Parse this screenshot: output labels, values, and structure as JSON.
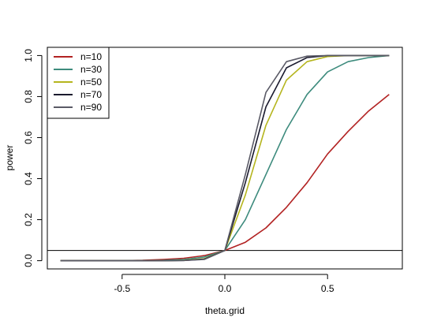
{
  "chart_data": {
    "type": "line",
    "xlabel": "theta.grid",
    "ylabel": "power",
    "xlim": [
      -0.8,
      0.8
    ],
    "ylim": [
      0,
      1
    ],
    "x_ticks": [
      -0.5,
      0.0,
      0.5
    ],
    "x_tick_labels": [
      "-0.5",
      "0.0",
      "0.5"
    ],
    "y_ticks": [
      0.0,
      0.2,
      0.4,
      0.6,
      0.8,
      1.0
    ],
    "y_tick_labels": [
      "0.0",
      "0.2",
      "0.4",
      "0.6",
      "0.8",
      "1.0"
    ],
    "legend_position": "top-left",
    "reference_line": {
      "y": 0.05,
      "color": "#000000"
    },
    "series": [
      {
        "name": "n=10",
        "color": "#b22222",
        "x": [
          -0.8,
          -0.7,
          -0.6,
          -0.5,
          -0.4,
          -0.3,
          -0.2,
          -0.1,
          0.0,
          0.1,
          0.2,
          0.3,
          0.4,
          0.5,
          0.6,
          0.7,
          0.8
        ],
        "y": [
          0.0,
          0.0,
          0.0,
          0.0,
          0.002,
          0.006,
          0.012,
          0.025,
          0.05,
          0.09,
          0.16,
          0.26,
          0.38,
          0.52,
          0.63,
          0.73,
          0.81
        ]
      },
      {
        "name": "n=30",
        "color": "#3d8b7d",
        "x": [
          -0.8,
          -0.7,
          -0.6,
          -0.5,
          -0.4,
          -0.3,
          -0.2,
          -0.1,
          0.0,
          0.1,
          0.2,
          0.3,
          0.4,
          0.5,
          0.6,
          0.7,
          0.8
        ],
        "y": [
          0.0,
          0.0,
          0.0,
          0.0,
          0.0,
          0.002,
          0.006,
          0.018,
          0.05,
          0.2,
          0.42,
          0.64,
          0.81,
          0.92,
          0.97,
          0.99,
          1.0
        ]
      },
      {
        "name": "n=50",
        "color": "#b5b51e",
        "x": [
          -0.8,
          -0.7,
          -0.6,
          -0.5,
          -0.4,
          -0.3,
          -0.2,
          -0.1,
          0.0,
          0.1,
          0.2,
          0.3,
          0.4,
          0.5,
          0.6,
          0.7,
          0.8
        ],
        "y": [
          0.0,
          0.0,
          0.0,
          0.0,
          0.0,
          0.0,
          0.002,
          0.01,
          0.05,
          0.32,
          0.66,
          0.88,
          0.97,
          0.995,
          1.0,
          1.0,
          1.0
        ]
      },
      {
        "name": "n=70",
        "color": "#1a1a2e",
        "x": [
          -0.8,
          -0.7,
          -0.6,
          -0.5,
          -0.4,
          -0.3,
          -0.2,
          -0.1,
          0.0,
          0.1,
          0.2,
          0.3,
          0.4,
          0.5,
          0.6,
          0.7,
          0.8
        ],
        "y": [
          0.0,
          0.0,
          0.0,
          0.0,
          0.0,
          0.0,
          0.001,
          0.008,
          0.05,
          0.38,
          0.75,
          0.94,
          0.99,
          1.0,
          1.0,
          1.0,
          1.0
        ]
      },
      {
        "name": "n=90",
        "color": "#5a5a66",
        "x": [
          -0.8,
          -0.7,
          -0.6,
          -0.5,
          -0.4,
          -0.3,
          -0.2,
          -0.1,
          0.0,
          0.1,
          0.2,
          0.3,
          0.4,
          0.5,
          0.6,
          0.7,
          0.8
        ],
        "y": [
          0.0,
          0.0,
          0.0,
          0.0,
          0.0,
          0.0,
          0.001,
          0.006,
          0.05,
          0.42,
          0.82,
          0.97,
          0.997,
          1.0,
          1.0,
          1.0,
          1.0
        ]
      }
    ]
  }
}
